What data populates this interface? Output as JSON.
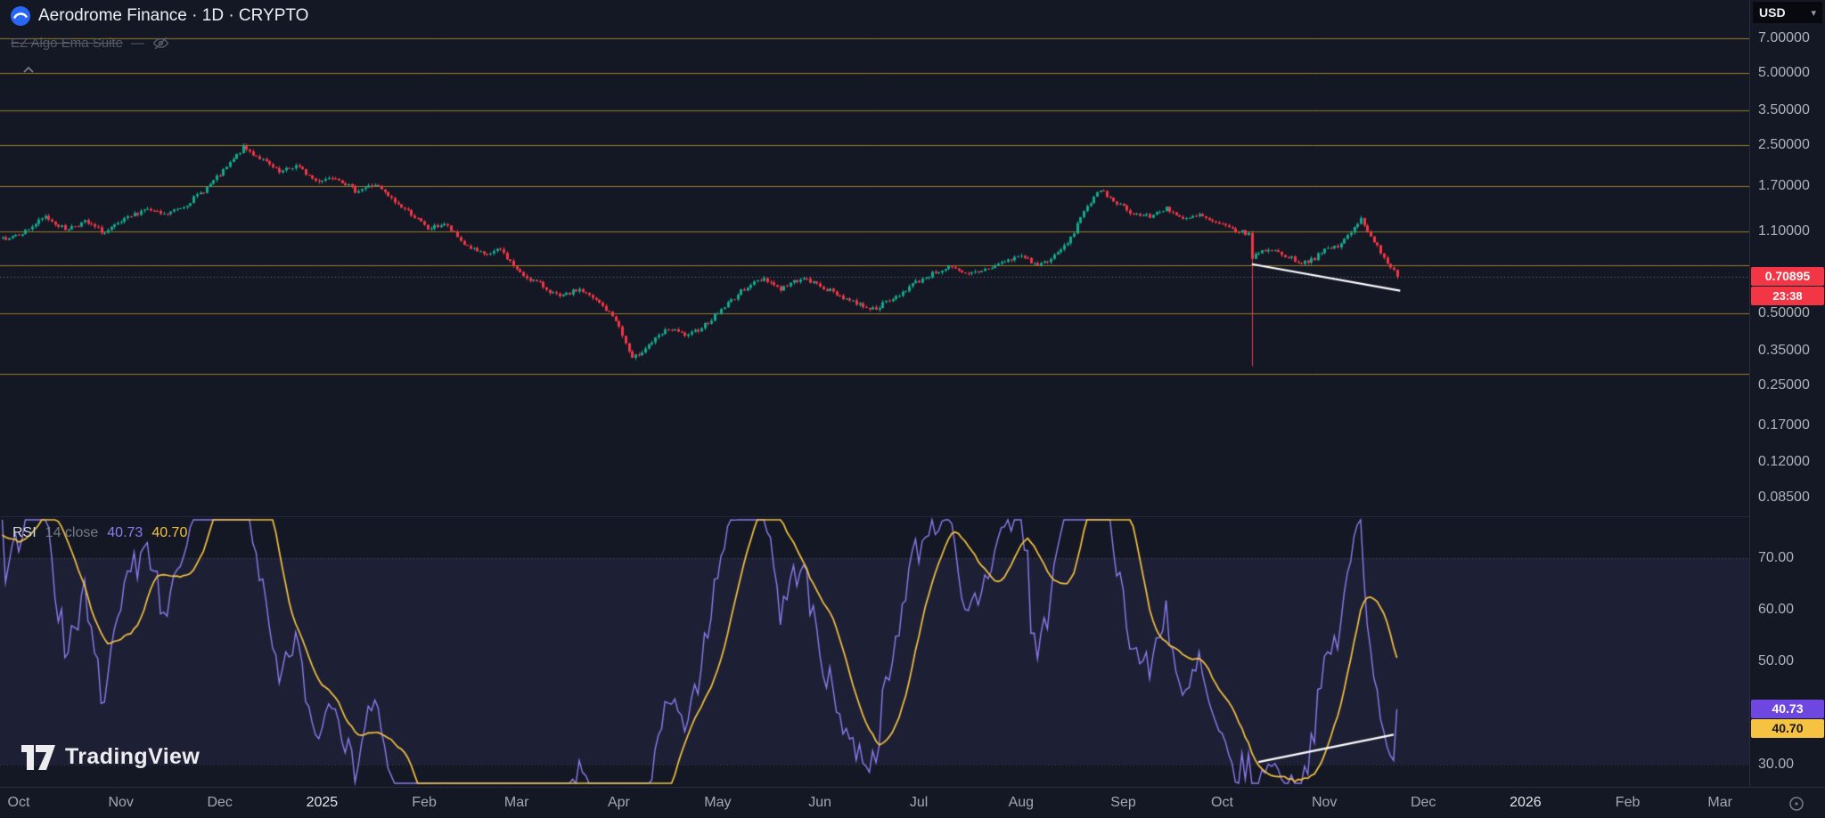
{
  "header": {
    "symbol_title": "Aerodrome Finance · 1D · CRYPTO",
    "indicator_name": "EZ Algo Ema Suite",
    "indicator_hidden": true
  },
  "currency_selector": {
    "value": "USD"
  },
  "watermark": {
    "text": "TradingView"
  },
  "rsi_legend": {
    "title": "RSI",
    "params": "14 close",
    "value": "40.73",
    "ma_value": "40.70"
  },
  "price_axis": {
    "labels": [
      {
        "text": "7.00000",
        "price": 7
      },
      {
        "text": "5.00000",
        "price": 5
      },
      {
        "text": "3.50000",
        "price": 3.5
      },
      {
        "text": "2.50000",
        "price": 2.5
      },
      {
        "text": "1.70000",
        "price": 1.7
      },
      {
        "text": "1.10000",
        "price": 1.1
      },
      {
        "text": "0.50000",
        "price": 0.5
      },
      {
        "text": "0.35000",
        "price": 0.35
      },
      {
        "text": "0.25000",
        "price": 0.25
      },
      {
        "text": "0.17000",
        "price": 0.17
      },
      {
        "text": "0.12000",
        "price": 0.12
      },
      {
        "text": "0.08500",
        "price": 0.085
      }
    ],
    "current_price_badge": {
      "text": "0.70895",
      "color": "#f23645"
    },
    "countdown_badge": {
      "text": "23:38",
      "color": "#f23645"
    }
  },
  "rsi_axis": {
    "labels": [
      {
        "text": "70.00",
        "value": 70
      },
      {
        "text": "60.00",
        "value": 60
      },
      {
        "text": "50.00",
        "value": 50
      },
      {
        "text": "30.00",
        "value": 30
      }
    ],
    "badges": [
      {
        "text": "40.73",
        "color": "#6e47e0",
        "text_color": "#ffffff"
      },
      {
        "text": "40.70",
        "color": "#f5c242",
        "text_color": "#151515"
      }
    ]
  },
  "time_axis": {
    "labels": [
      {
        "text": "Oct",
        "day": 5
      },
      {
        "text": "Nov",
        "day": 36
      },
      {
        "text": "Dec",
        "day": 66
      },
      {
        "text": "2025",
        "day": 97,
        "year": true
      },
      {
        "text": "Feb",
        "day": 128
      },
      {
        "text": "Mar",
        "day": 156
      },
      {
        "text": "Apr",
        "day": 187
      },
      {
        "text": "May",
        "day": 217
      },
      {
        "text": "Jun",
        "day": 248
      },
      {
        "text": "Jul",
        "day": 278
      },
      {
        "text": "Aug",
        "day": 309
      },
      {
        "text": "Sep",
        "day": 340
      },
      {
        "text": "Oct",
        "day": 370
      },
      {
        "text": "Nov",
        "day": 401
      },
      {
        "text": "Dec",
        "day": 431
      },
      {
        "text": "2026",
        "day": 462,
        "year": true
      },
      {
        "text": "Feb",
        "day": 493
      },
      {
        "text": "Mar",
        "day": 521
      }
    ]
  },
  "colors": {
    "background": "#141824",
    "axis_text": "#aeb1bb",
    "gold_level": "#a8862e",
    "up": "#12a88e",
    "down": "#f23645",
    "trendline": "#ffffff"
  },
  "chart_data": [
    {
      "type": "candlestick",
      "title": "Aerodrome Finance · 1D · CRYPTO",
      "symbol": "Aerodrome Finance",
      "interval": "1D",
      "exchange": "CRYPTO",
      "currency": "USD",
      "yaxis": {
        "scale": "log",
        "ticks": [
          7,
          5,
          3.5,
          2.5,
          1.7,
          1.1,
          0.5,
          0.35,
          0.25,
          0.17,
          0.12,
          0.085
        ]
      },
      "last_price": 0.70895,
      "countdown": "23:38",
      "anchors_day_close": [
        [
          0,
          1.02
        ],
        [
          7,
          1.1
        ],
        [
          13,
          1.26
        ],
        [
          19,
          1.12
        ],
        [
          25,
          1.2
        ],
        [
          31,
          1.08
        ],
        [
          37,
          1.22
        ],
        [
          43,
          1.36
        ],
        [
          49,
          1.28
        ],
        [
          55,
          1.4
        ],
        [
          61,
          1.62
        ],
        [
          67,
          1.95
        ],
        [
          73,
          2.45
        ],
        [
          78,
          2.22
        ],
        [
          84,
          1.92
        ],
        [
          89,
          2.06
        ],
        [
          95,
          1.78
        ],
        [
          101,
          1.86
        ],
        [
          107,
          1.62
        ],
        [
          113,
          1.72
        ],
        [
          119,
          1.45
        ],
        [
          124,
          1.3
        ],
        [
          129,
          1.12
        ],
        [
          134,
          1.18
        ],
        [
          140,
          0.97
        ],
        [
          146,
          0.87
        ],
        [
          151,
          0.92
        ],
        [
          157,
          0.73
        ],
        [
          163,
          0.66
        ],
        [
          169,
          0.58
        ],
        [
          175,
          0.63
        ],
        [
          181,
          0.55
        ],
        [
          186,
          0.47
        ],
        [
          191,
          0.32
        ],
        [
          196,
          0.37
        ],
        [
          202,
          0.43
        ],
        [
          208,
          0.4
        ],
        [
          214,
          0.46
        ],
        [
          220,
          0.55
        ],
        [
          226,
          0.65
        ],
        [
          231,
          0.7
        ],
        [
          236,
          0.63
        ],
        [
          242,
          0.7
        ],
        [
          247,
          0.66
        ],
        [
          253,
          0.6
        ],
        [
          259,
          0.55
        ],
        [
          264,
          0.52
        ],
        [
          270,
          0.57
        ],
        [
          276,
          0.66
        ],
        [
          281,
          0.72
        ],
        [
          287,
          0.78
        ],
        [
          292,
          0.72
        ],
        [
          298,
          0.76
        ],
        [
          304,
          0.82
        ],
        [
          309,
          0.87
        ],
        [
          314,
          0.79
        ],
        [
          319,
          0.86
        ],
        [
          324,
          1.02
        ],
        [
          328,
          1.35
        ],
        [
          333,
          1.62
        ],
        [
          338,
          1.45
        ],
        [
          343,
          1.3
        ],
        [
          348,
          1.26
        ],
        [
          353,
          1.38
        ],
        [
          358,
          1.22
        ],
        [
          363,
          1.28
        ],
        [
          368,
          1.18
        ],
        [
          373,
          1.12
        ],
        [
          378,
          1.06
        ],
        [
          379,
          0.86
        ],
        [
          384,
          0.93
        ],
        [
          389,
          0.87
        ],
        [
          394,
          0.81
        ],
        [
          398,
          0.85
        ],
        [
          402,
          0.93
        ],
        [
          405,
          0.95
        ],
        [
          409,
          1.08
        ],
        [
          412,
          1.24
        ],
        [
          415,
          1.05
        ],
        [
          418,
          0.9
        ],
        [
          421,
          0.78
        ],
        [
          423,
          0.709
        ]
      ],
      "crash_candle": {
        "day": 379,
        "low": 0.3
      },
      "horizontal_levels": [
        7.0,
        5.0,
        3.5,
        2.5,
        1.7,
        1.1,
        0.79,
        0.5,
        0.28
      ],
      "trendline": {
        "points_day_price": [
          [
            379,
            0.8
          ],
          [
            424,
            0.62
          ]
        ],
        "color": "#ffffff"
      },
      "colors": {
        "up": "#12a88e",
        "down": "#f23645"
      }
    },
    {
      "type": "line",
      "title": "RSI 14 close",
      "period": 14,
      "source": "close",
      "current": 40.73,
      "ma_current": 40.7,
      "ma_type": "SMA 14 of RSI",
      "levels": {
        "overbought": 70,
        "oversold": 30
      },
      "yticks": [
        70,
        60,
        50,
        30
      ],
      "trendline": {
        "points_day_value": [
          [
            381,
            30.5
          ],
          [
            422,
            35.8
          ]
        ],
        "color": "#ffffff"
      },
      "colors": {
        "rsi_line": "#8d7bf0",
        "ma": "#f5c242",
        "band": "rgba(136,130,255,0.08)"
      }
    }
  ]
}
